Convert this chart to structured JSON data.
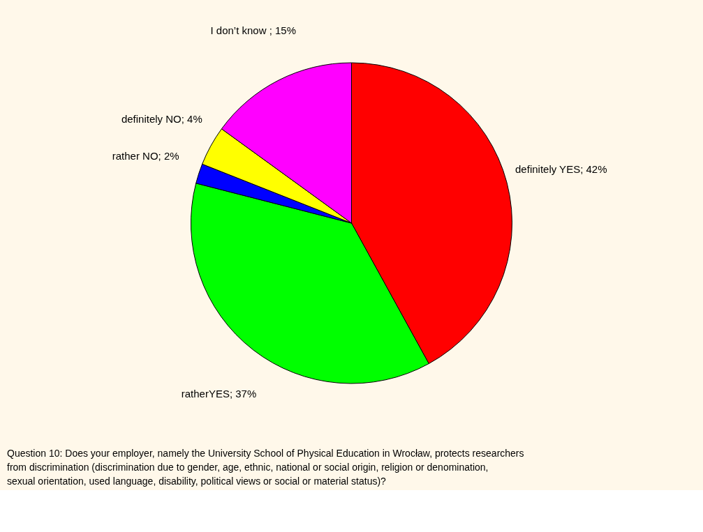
{
  "chart_data": {
    "type": "pie",
    "categories": [
      "definitely YES",
      "ratherYES",
      "rather NO",
      "definitely NO",
      "I don’t know"
    ],
    "values": [
      42,
      37,
      2,
      4,
      15
    ],
    "colors": [
      "#ff0000",
      "#00ff00",
      "#0000ff",
      "#ffff00",
      "#ff00ff"
    ],
    "value_labels": [
      "; 42%",
      "; 37%",
      "; 2%",
      "; 4%",
      " ; 15%"
    ],
    "annotations": [
      "Question 10: Does your employer, namely the University School of Physical Education in Wrocław, protects researchers from discrimination (discrimination due to gender, age, ethnic, national or social origin, religion or denomination, sexual orientation, used language, disability, political views or social or material status)?"
    ],
    "legend": false
  }
}
